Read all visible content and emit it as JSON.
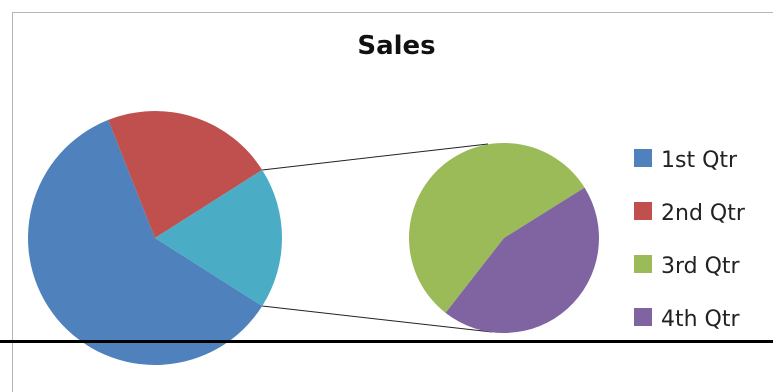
{
  "chart_data": {
    "type": "pie",
    "subtype": "pie-of-pie",
    "title": "Sales",
    "categories": [
      "1st Qtr",
      "2nd Qtr",
      "3rd Qtr",
      "4th Qtr"
    ],
    "values": [
      60,
      22,
      10,
      8
    ],
    "colors": [
      "#4f81bd",
      "#c0504d",
      "#9bbb59",
      "#8064a2"
    ],
    "other_color": "#4bacc6",
    "secondary_categories": [
      "3rd Qtr",
      "4th Qtr"
    ],
    "legend": "right"
  }
}
